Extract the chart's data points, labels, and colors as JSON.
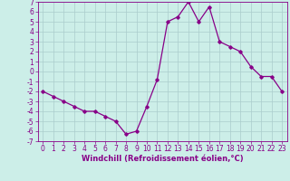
{
  "x": [
    0,
    1,
    2,
    3,
    4,
    5,
    6,
    7,
    8,
    9,
    10,
    11,
    12,
    13,
    14,
    15,
    16,
    17,
    18,
    19,
    20,
    21,
    22,
    23
  ],
  "y": [
    -2,
    -2.5,
    -3,
    -3.5,
    -4,
    -4,
    -4.5,
    -5,
    -6.3,
    -6,
    -3.5,
    -0.8,
    5,
    5.5,
    7,
    5,
    6.5,
    3,
    2.5,
    2,
    0.5,
    -0.5,
    -0.5,
    -2
  ],
  "line_color": "#880088",
  "marker": "D",
  "marker_size": 1.8,
  "bg_color": "#cceee8",
  "grid_color": "#aacccc",
  "xlabel": "Windchill (Refroidissement éolien,°C)",
  "xlim": [
    -0.5,
    23.5
  ],
  "ylim": [
    -7,
    7
  ],
  "yticks": [
    -7,
    -6,
    -5,
    -4,
    -3,
    -2,
    -1,
    0,
    1,
    2,
    3,
    4,
    5,
    6,
    7
  ],
  "xticks": [
    0,
    1,
    2,
    3,
    4,
    5,
    6,
    7,
    8,
    9,
    10,
    11,
    12,
    13,
    14,
    15,
    16,
    17,
    18,
    19,
    20,
    21,
    22,
    23
  ],
  "tick_fontsize": 5.5,
  "xlabel_fontsize": 6.0,
  "linewidth": 0.9
}
